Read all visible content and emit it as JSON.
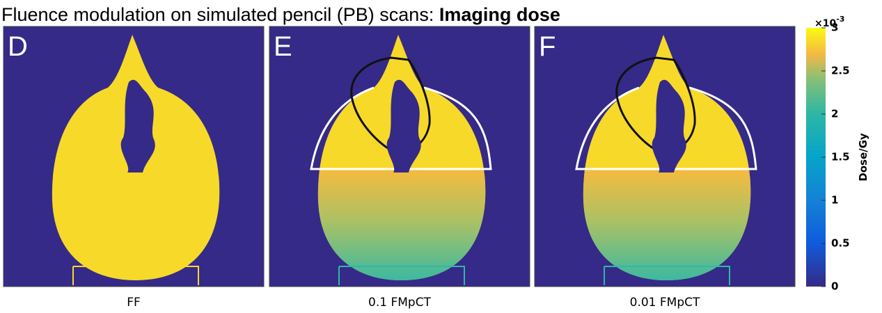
{
  "title": {
    "text": "Fluence modulation on simulated pencil (PB) scans: ",
    "bold": "Imaging dose"
  },
  "panels": [
    {
      "letter": "D",
      "caption": "FF"
    },
    {
      "letter": "E",
      "caption": "0.1 FMpCT"
    },
    {
      "letter": "F",
      "caption": "0.01 FMpCT"
    }
  ],
  "colorbar": {
    "label": "Dose/Gy",
    "multiplier": "×10",
    "exponent": "-3",
    "lim": [
      0,
      3
    ],
    "ticks": [
      0,
      0.5,
      1,
      1.5,
      2,
      2.5,
      3
    ]
  }
}
